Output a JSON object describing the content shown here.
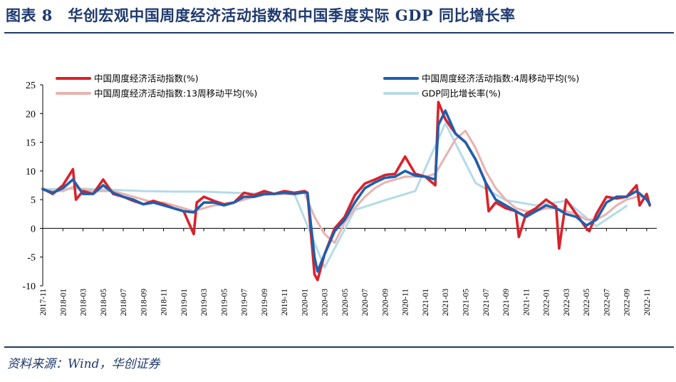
{
  "header": {
    "title": "图表 8　华创宏观中国周度经济活动指数和中国季度实际 GDP 同比增长率"
  },
  "footer": {
    "source": "资料来源：Wind，华创证券"
  },
  "colors": {
    "title": "#1f3a6e",
    "weekly": "#d9222a",
    "ma4": "#1f5fae",
    "ma13": "#e8b2ae",
    "gdp": "#b4dbe8"
  },
  "chart_data": {
    "type": "line",
    "ylim": [
      -10,
      25
    ],
    "yticks": [
      -10,
      -5,
      0,
      5,
      10,
      15,
      20,
      25
    ],
    "xlim": [
      "2017-11",
      "2022-12"
    ],
    "xticks": [
      "2017-11",
      "2018-01",
      "2018-03",
      "2018-05",
      "2018-07",
      "2018-09",
      "2018-11",
      "2019-01",
      "2019-03",
      "2019-05",
      "2019-07",
      "2019-09",
      "2019-11",
      "2020-01",
      "2020-03",
      "2020-05",
      "2020-07",
      "2020-09",
      "2020-11",
      "2021-01",
      "2021-03",
      "2021-05",
      "2021-07",
      "2021-09",
      "2021-11",
      "2022-01",
      "2022-03",
      "2022-05",
      "2022-07",
      "2022-09",
      "2022-11"
    ],
    "legend": {
      "placement": "top",
      "columns": 2
    },
    "series": [
      {
        "name": "中国周度经济活动指数(%)",
        "color": "#d9222a",
        "points": [
          [
            "2017-11",
            6.9
          ],
          [
            "2017-12",
            6.0
          ],
          [
            "2018-01",
            7.5
          ],
          [
            "2018-02",
            10.3
          ],
          [
            "2018-02",
            5.0
          ],
          [
            "2018-03",
            6.5
          ],
          [
            "2018-04",
            6.0
          ],
          [
            "2018-05",
            8.5
          ],
          [
            "2018-06",
            6.0
          ],
          [
            "2018-07",
            5.5
          ],
          [
            "2018-08",
            4.8
          ],
          [
            "2018-09",
            4.2
          ],
          [
            "2018-10",
            4.8
          ],
          [
            "2018-11",
            4.2
          ],
          [
            "2018-12",
            3.5
          ],
          [
            "2019-01",
            3.0
          ],
          [
            "2019-02",
            -1.0
          ],
          [
            "2019-02",
            4.5
          ],
          [
            "2019-03",
            5.5
          ],
          [
            "2019-04",
            4.8
          ],
          [
            "2019-05",
            4.2
          ],
          [
            "2019-06",
            4.5
          ],
          [
            "2019-07",
            6.2
          ],
          [
            "2019-08",
            5.8
          ],
          [
            "2019-09",
            6.5
          ],
          [
            "2019-10",
            6.0
          ],
          [
            "2019-11",
            6.5
          ],
          [
            "2019-12",
            6.2
          ],
          [
            "2020-01",
            6.5
          ],
          [
            "2020-01",
            6.2
          ],
          [
            "2020-02",
            -8.0
          ],
          [
            "2020-02",
            -9.0
          ],
          [
            "2020-03",
            -4.5
          ],
          [
            "2020-04",
            0.0
          ],
          [
            "2020-05",
            2.0
          ],
          [
            "2020-06",
            5.8
          ],
          [
            "2020-07",
            7.8
          ],
          [
            "2020-08",
            8.5
          ],
          [
            "2020-09",
            9.3
          ],
          [
            "2020-10",
            9.5
          ],
          [
            "2020-11",
            12.5
          ],
          [
            "2020-12",
            9.5
          ],
          [
            "2021-01",
            9.0
          ],
          [
            "2021-02",
            7.5
          ],
          [
            "2021-02",
            22.0
          ],
          [
            "2021-03",
            19.0
          ],
          [
            "2021-04",
            16.5
          ],
          [
            "2021-05",
            15.0
          ],
          [
            "2021-06",
            12.0
          ],
          [
            "2021-07",
            8.0
          ],
          [
            "2021-07",
            3.0
          ],
          [
            "2021-08",
            4.5
          ],
          [
            "2021-09",
            3.5
          ],
          [
            "2021-10",
            3.0
          ],
          [
            "2021-10",
            -1.5
          ],
          [
            "2021-11",
            2.5
          ],
          [
            "2021-12",
            3.5
          ],
          [
            "2022-01",
            5.0
          ],
          [
            "2022-02",
            3.8
          ],
          [
            "2022-02",
            -3.5
          ],
          [
            "2022-03",
            5.0
          ],
          [
            "2022-04",
            2.5
          ],
          [
            "2022-05",
            0.0
          ],
          [
            "2022-05",
            -0.5
          ],
          [
            "2022-06",
            2.5
          ],
          [
            "2022-07",
            5.5
          ],
          [
            "2022-08",
            5.2
          ],
          [
            "2022-09",
            5.5
          ],
          [
            "2022-10",
            7.5
          ],
          [
            "2022-10",
            4.0
          ],
          [
            "2022-11",
            6.0
          ],
          [
            "2022-11",
            4.0
          ]
        ]
      },
      {
        "name": "中国周度经济活动指数:4周移动平均(%)",
        "color": "#1f5fae",
        "points": [
          [
            "2017-11",
            6.8
          ],
          [
            "2017-12",
            6.2
          ],
          [
            "2018-01",
            7.0
          ],
          [
            "2018-02",
            8.5
          ],
          [
            "2018-03",
            6.0
          ],
          [
            "2018-04",
            6.0
          ],
          [
            "2018-05",
            7.5
          ],
          [
            "2018-06",
            6.2
          ],
          [
            "2018-07",
            5.5
          ],
          [
            "2018-08",
            5.0
          ],
          [
            "2018-09",
            4.2
          ],
          [
            "2018-10",
            4.5
          ],
          [
            "2018-11",
            4.0
          ],
          [
            "2018-12",
            3.5
          ],
          [
            "2019-01",
            3.0
          ],
          [
            "2019-02",
            2.8
          ],
          [
            "2019-03",
            4.5
          ],
          [
            "2019-04",
            4.5
          ],
          [
            "2019-05",
            4.0
          ],
          [
            "2019-06",
            4.5
          ],
          [
            "2019-07",
            5.5
          ],
          [
            "2019-08",
            5.5
          ],
          [
            "2019-09",
            6.0
          ],
          [
            "2019-10",
            6.0
          ],
          [
            "2019-11",
            6.2
          ],
          [
            "2019-12",
            6.0
          ],
          [
            "2020-01",
            6.3
          ],
          [
            "2020-01",
            6.2
          ],
          [
            "2020-02",
            -5.0
          ],
          [
            "2020-02",
            -7.5
          ],
          [
            "2020-03",
            -4.5
          ],
          [
            "2020-04",
            -0.5
          ],
          [
            "2020-05",
            1.5
          ],
          [
            "2020-06",
            4.5
          ],
          [
            "2020-07",
            7.0
          ],
          [
            "2020-08",
            8.0
          ],
          [
            "2020-09",
            8.8
          ],
          [
            "2020-10",
            9.0
          ],
          [
            "2020-11",
            10.0
          ],
          [
            "2020-12",
            9.2
          ],
          [
            "2021-01",
            9.0
          ],
          [
            "2021-02",
            8.5
          ],
          [
            "2021-02",
            18.0
          ],
          [
            "2021-03",
            20.5
          ],
          [
            "2021-04",
            16.5
          ],
          [
            "2021-05",
            15.0
          ],
          [
            "2021-06",
            12.0
          ],
          [
            "2021-07",
            8.0
          ],
          [
            "2021-08",
            5.0
          ],
          [
            "2021-09",
            4.0
          ],
          [
            "2021-10",
            3.0
          ],
          [
            "2021-11",
            2.0
          ],
          [
            "2021-12",
            3.0
          ],
          [
            "2022-01",
            4.0
          ],
          [
            "2022-02",
            3.5
          ],
          [
            "2022-03",
            2.5
          ],
          [
            "2022-04",
            2.0
          ],
          [
            "2022-05",
            0.5
          ],
          [
            "2022-06",
            1.5
          ],
          [
            "2022-07",
            4.5
          ],
          [
            "2022-08",
            5.5
          ],
          [
            "2022-09",
            5.5
          ],
          [
            "2022-10",
            6.5
          ],
          [
            "2022-11",
            5.0
          ],
          [
            "2022-11",
            4.2
          ]
        ]
      },
      {
        "name": "中国周度经济活动指数:13周移动平均(%)",
        "color": "#e8b2ae",
        "points": [
          [
            "2017-11",
            6.8
          ],
          [
            "2017-12",
            6.5
          ],
          [
            "2018-01",
            6.5
          ],
          [
            "2018-02",
            7.2
          ],
          [
            "2018-03",
            6.8
          ],
          [
            "2018-04",
            6.5
          ],
          [
            "2018-05",
            6.5
          ],
          [
            "2018-06",
            6.5
          ],
          [
            "2018-07",
            6.0
          ],
          [
            "2018-08",
            5.5
          ],
          [
            "2018-09",
            5.0
          ],
          [
            "2018-10",
            4.5
          ],
          [
            "2018-11",
            4.5
          ],
          [
            "2018-12",
            4.0
          ],
          [
            "2019-01",
            3.5
          ],
          [
            "2019-02",
            3.0
          ],
          [
            "2019-03",
            3.5
          ],
          [
            "2019-04",
            4.0
          ],
          [
            "2019-05",
            4.2
          ],
          [
            "2019-06",
            4.5
          ],
          [
            "2019-07",
            5.0
          ],
          [
            "2019-08",
            5.5
          ],
          [
            "2019-09",
            5.8
          ],
          [
            "2019-10",
            6.0
          ],
          [
            "2019-11",
            6.0
          ],
          [
            "2019-12",
            6.0
          ],
          [
            "2020-01",
            6.2
          ],
          [
            "2020-02",
            2.0
          ],
          [
            "2020-03",
            -1.0
          ],
          [
            "2020-04",
            -2.5
          ],
          [
            "2020-05",
            1.0
          ],
          [
            "2020-06",
            3.5
          ],
          [
            "2020-07",
            5.5
          ],
          [
            "2020-08",
            7.0
          ],
          [
            "2020-09",
            8.0
          ],
          [
            "2020-10",
            8.5
          ],
          [
            "2020-11",
            9.0
          ],
          [
            "2020-12",
            9.0
          ],
          [
            "2021-01",
            9.0
          ],
          [
            "2021-02",
            9.5
          ],
          [
            "2021-03",
            12.5
          ],
          [
            "2021-04",
            15.5
          ],
          [
            "2021-05",
            17.0
          ],
          [
            "2021-06",
            14.0
          ],
          [
            "2021-07",
            10.0
          ],
          [
            "2021-08",
            7.0
          ],
          [
            "2021-09",
            5.0
          ],
          [
            "2021-10",
            3.5
          ],
          [
            "2021-11",
            3.0
          ],
          [
            "2021-12",
            3.0
          ],
          [
            "2022-01",
            3.5
          ],
          [
            "2022-02",
            3.5
          ],
          [
            "2022-03",
            3.0
          ],
          [
            "2022-04",
            2.5
          ],
          [
            "2022-05",
            1.5
          ],
          [
            "2022-06",
            1.5
          ],
          [
            "2022-07",
            2.5
          ],
          [
            "2022-08",
            4.0
          ],
          [
            "2022-09",
            5.0
          ],
          [
            "2022-10",
            5.5
          ],
          [
            "2022-11",
            5.5
          ]
        ]
      },
      {
        "name": "GDP同比增长率(%)",
        "color": "#b4dbe8",
        "points": [
          [
            "2017-11",
            6.8
          ],
          [
            "2018-03",
            6.9
          ],
          [
            "2018-06",
            6.7
          ],
          [
            "2018-09",
            6.5
          ],
          [
            "2018-12",
            6.4
          ],
          [
            "2019-03",
            6.4
          ],
          [
            "2019-06",
            6.2
          ],
          [
            "2019-09",
            6.0
          ],
          [
            "2019-12",
            6.0
          ],
          [
            "2020-03",
            -6.8
          ],
          [
            "2020-06",
            3.2
          ],
          [
            "2020-09",
            4.9
          ],
          [
            "2020-12",
            6.5
          ],
          [
            "2021-03",
            18.3
          ],
          [
            "2021-06",
            7.9
          ],
          [
            "2021-09",
            4.9
          ],
          [
            "2021-12",
            4.0
          ],
          [
            "2022-03",
            4.8
          ],
          [
            "2022-06",
            0.4
          ],
          [
            "2022-09",
            3.9
          ]
        ]
      }
    ]
  }
}
